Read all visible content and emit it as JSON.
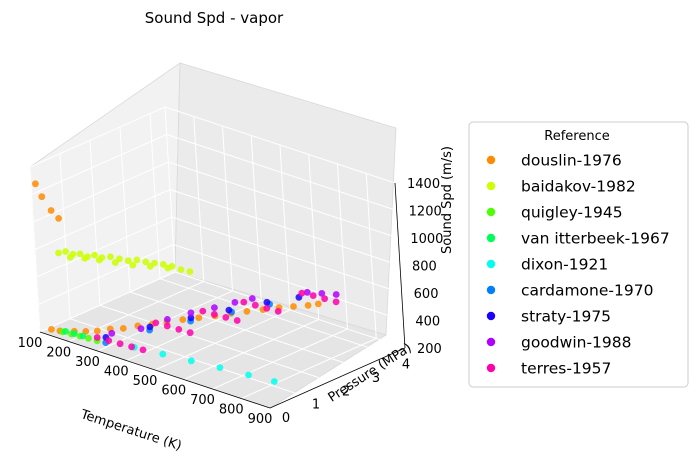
{
  "chart_data": {
    "type": "scatter",
    "projection": "3d",
    "title": "Sound Spd - vapor",
    "xlabel": "Temperature (K)",
    "ylabel": "Pressure (MPa)",
    "zlabel": "Sound Spd (m/s)",
    "xticks": [
      "100",
      "200",
      "300",
      "400",
      "500",
      "600",
      "700",
      "800",
      "900"
    ],
    "yticks": [
      "0",
      "1",
      "2",
      "3",
      "4"
    ],
    "zticks": [
      "200",
      "400",
      "600",
      "800",
      "1000",
      "1200",
      "1400"
    ],
    "xlim": [
      100,
      900
    ],
    "ylim": [
      0,
      4.5
    ],
    "zlim": [
      200,
      1400
    ],
    "grid": true,
    "legend": {
      "title": "Reference",
      "placement": "right"
    },
    "series": [
      {
        "name": "douslin-1976",
        "color": "#ff8c00",
        "points": [
          [
            110,
            0.05,
            1280
          ],
          [
            130,
            0.05,
            1200
          ],
          [
            160,
            0.05,
            1120
          ],
          [
            185,
            0.05,
            1080
          ],
          [
            130,
            0.1,
            230
          ],
          [
            160,
            0.1,
            240
          ],
          [
            200,
            0.2,
            255
          ],
          [
            230,
            0.3,
            265
          ],
          [
            260,
            0.4,
            280
          ],
          [
            290,
            0.55,
            300
          ],
          [
            320,
            0.7,
            310
          ],
          [
            350,
            0.9,
            330
          ],
          [
            380,
            1.1,
            345
          ],
          [
            410,
            1.3,
            360
          ],
          [
            440,
            1.55,
            375
          ],
          [
            470,
            1.8,
            385
          ],
          [
            500,
            2.05,
            395
          ],
          [
            530,
            2.3,
            410
          ],
          [
            560,
            2.55,
            420
          ],
          [
            590,
            2.8,
            430
          ],
          [
            620,
            3.05,
            440
          ],
          [
            650,
            3.25,
            450
          ],
          [
            680,
            3.45,
            460
          ],
          [
            700,
            3.6,
            470
          ]
        ]
      },
      {
        "name": "baidakov-1982",
        "color": "#ccff00",
        "points": [
          [
            150,
            0.3,
            780
          ],
          [
            170,
            0.35,
            800
          ],
          [
            190,
            0.4,
            790
          ],
          [
            210,
            0.45,
            800
          ],
          [
            230,
            0.5,
            790
          ],
          [
            250,
            0.55,
            810
          ],
          [
            270,
            0.6,
            800
          ],
          [
            290,
            0.7,
            810
          ],
          [
            310,
            0.8,
            800
          ],
          [
            330,
            0.9,
            790
          ],
          [
            350,
            1.0,
            800
          ],
          [
            370,
            1.1,
            790
          ],
          [
            390,
            1.2,
            785
          ],
          [
            410,
            1.3,
            780
          ],
          [
            430,
            1.4,
            770
          ],
          [
            180,
            0.4,
            760
          ],
          [
            220,
            0.5,
            770
          ],
          [
            260,
            0.6,
            775
          ],
          [
            300,
            0.75,
            770
          ],
          [
            340,
            0.95,
            760
          ],
          [
            380,
            1.15,
            760
          ],
          [
            420,
            1.35,
            755
          ],
          [
            450,
            1.5,
            750
          ],
          [
            470,
            1.6,
            740
          ]
        ]
      },
      {
        "name": "quigley-1945",
        "color": "#4dff00",
        "points": [
          [
            170,
            0.1,
            240
          ],
          [
            200,
            0.1,
            245
          ],
          [
            230,
            0.1,
            250
          ],
          [
            260,
            0.1,
            255
          ],
          [
            290,
            0.1,
            258
          ]
        ]
      },
      {
        "name": "van itterbeek-1967",
        "color": "#00ff55",
        "points": [
          [
            180,
            0.1,
            250
          ],
          [
            210,
            0.1,
            255
          ],
          [
            240,
            0.1,
            258
          ]
        ]
      },
      {
        "name": "dixon-1921",
        "color": "#00ffee",
        "points": [
          [
            420,
            0.1,
            300
          ],
          [
            520,
            0.1,
            320
          ],
          [
            620,
            0.1,
            340
          ],
          [
            720,
            0.1,
            360
          ],
          [
            820,
            0.1,
            375
          ],
          [
            910,
            0.1,
            390
          ]
        ]
      },
      {
        "name": "cardamone-1970",
        "color": "#0080ff",
        "points": [
          [
            320,
            0.1,
            265
          ],
          [
            380,
            1.0,
            310
          ],
          [
            440,
            1.8,
            340
          ],
          [
            500,
            2.6,
            370
          ],
          [
            560,
            3.3,
            400
          ]
        ]
      },
      {
        "name": "straty-1975",
        "color": "#1a00ff",
        "points": [
          [
            300,
            0.3,
            270
          ],
          [
            360,
            1.2,
            300
          ],
          [
            420,
            2.0,
            330
          ],
          [
            480,
            2.7,
            360
          ],
          [
            540,
            3.4,
            390
          ],
          [
            600,
            3.9,
            420
          ]
        ]
      },
      {
        "name": "goodwin-1988",
        "color": "#b000ff",
        "points": [
          [
            300,
            0.5,
            280
          ],
          [
            350,
            1.0,
            300
          ],
          [
            380,
            1.6,
            330
          ],
          [
            410,
            2.1,
            350
          ],
          [
            440,
            2.6,
            360
          ],
          [
            470,
            3.0,
            380
          ],
          [
            500,
            3.3,
            400
          ],
          [
            620,
            4.0,
            460
          ],
          [
            660,
            4.1,
            470
          ],
          [
            700,
            4.2,
            480
          ]
        ]
      },
      {
        "name": "terres-1957",
        "color": "#ff00aa",
        "points": [
          [
            280,
            0.2,
            265
          ],
          [
            320,
            0.2,
            270
          ],
          [
            360,
            0.2,
            275
          ],
          [
            400,
            0.2,
            280
          ],
          [
            440,
            0.2,
            285
          ],
          [
            360,
            1.4,
            310
          ],
          [
            400,
            1.4,
            315
          ],
          [
            440,
            1.4,
            318
          ],
          [
            480,
            1.4,
            322
          ],
          [
            420,
            2.4,
            340
          ],
          [
            460,
            2.4,
            345
          ],
          [
            500,
            2.4,
            350
          ],
          [
            540,
            2.4,
            355
          ],
          [
            480,
            3.2,
            370
          ],
          [
            520,
            3.2,
            375
          ],
          [
            560,
            3.2,
            380
          ],
          [
            600,
            3.2,
            385
          ],
          [
            600,
            4.0,
            440
          ],
          [
            640,
            4.0,
            450
          ],
          [
            680,
            4.0,
            455
          ],
          [
            720,
            4.0,
            460
          ]
        ]
      }
    ]
  }
}
